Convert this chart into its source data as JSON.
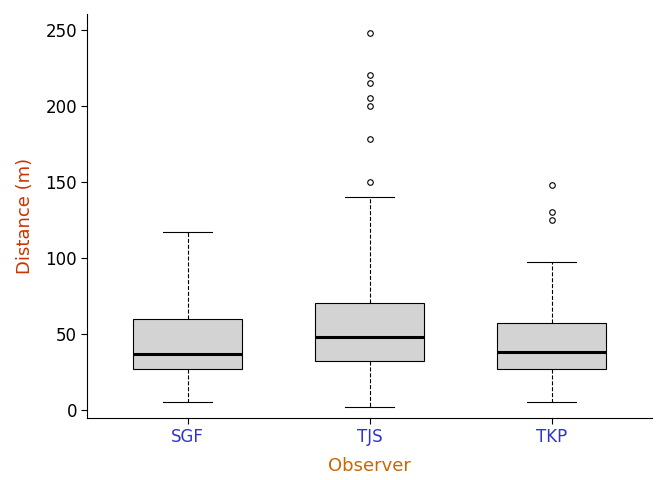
{
  "title": "",
  "xlabel": "Observer",
  "ylabel": "Distance (m)",
  "xlabel_color": "#CC6600",
  "ylabel_color": "#CC3300",
  "xtick_color": "#3333CC",
  "ytick_color": "#000000",
  "categories": [
    "SGF",
    "TJS",
    "TKP"
  ],
  "box_data": {
    "SGF": {
      "q1": 27,
      "median": 37,
      "q3": 60,
      "whisker_low": 5,
      "whisker_high": 117,
      "outliers": []
    },
    "TJS": {
      "q1": 32,
      "median": 48,
      "q3": 70,
      "whisker_low": 2,
      "whisker_high": 140,
      "outliers": [
        150,
        178,
        200,
        205,
        215,
        220,
        248
      ]
    },
    "TKP": {
      "q1": 27,
      "median": 38,
      "q3": 57,
      "whisker_low": 5,
      "whisker_high": 97,
      "outliers": [
        125,
        130,
        148
      ]
    }
  },
  "ylim": [
    -5,
    260
  ],
  "yticks": [
    0,
    50,
    100,
    150,
    200,
    250
  ],
  "box_color": "#D3D3D3",
  "median_color": "black",
  "whisker_color": "black",
  "outlier_color": "black",
  "background_color": "#FFFFFF"
}
